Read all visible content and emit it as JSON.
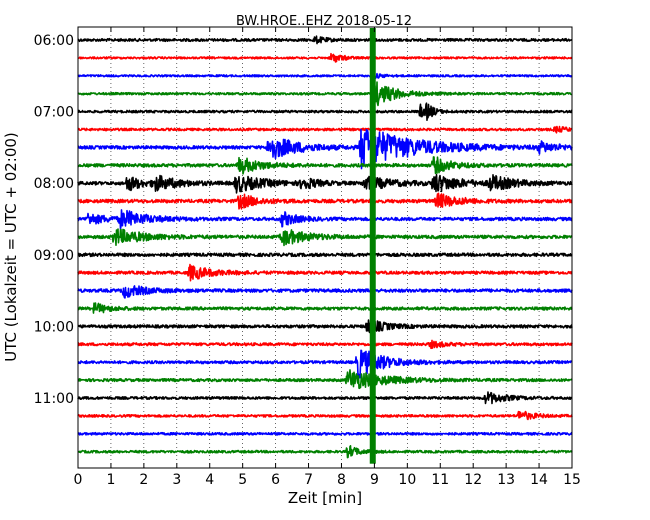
{
  "chart_data": {
    "type": "line",
    "title": "BW.HROE..EHZ 2018-05-12",
    "xlabel": "Zeit  [min]",
    "ylabel": "UTC (Lokalzeit = UTC + 02:00)",
    "xlim": [
      0,
      15
    ],
    "xticks": [
      "0",
      "1",
      "2",
      "3",
      "4",
      "5",
      "6",
      "7",
      "8",
      "9",
      "10",
      "11",
      "12",
      "13",
      "14",
      "15"
    ],
    "y_tick_labels": [
      "06:00",
      "07:00",
      "08:00",
      "09:00",
      "10:00",
      "11:00"
    ],
    "y_tick_trace_index": [
      0,
      4,
      8,
      12,
      16,
      20
    ],
    "trace_interval_minutes": 15,
    "trace_count": 24,
    "first_trace_time": "06:00",
    "grid": "vertical dotted at each minute",
    "colors": [
      "#000000",
      "#ff0000",
      "#0000ff",
      "#008000"
    ],
    "trace_noise": [
      0.25,
      0.18,
      0.18,
      0.2,
      0.22,
      0.22,
      0.3,
      0.3,
      0.3,
      0.32,
      0.3,
      0.3,
      0.3,
      0.28,
      0.3,
      0.28,
      0.28,
      0.26,
      0.26,
      0.26,
      0.24,
      0.22,
      0.22,
      0.22
    ],
    "events": [
      {
        "trace": 0,
        "minute": 7.2,
        "amp": 0.6,
        "dur": 0.3
      },
      {
        "trace": 1,
        "minute": 7.7,
        "amp": 1.0,
        "dur": 0.3
      },
      {
        "trace": 2,
        "minute": 9.0,
        "amp": 0.4,
        "dur": 0.3
      },
      {
        "trace": 3,
        "minute": 9.0,
        "amp": 2.5,
        "dur": 0.6
      },
      {
        "trace": 4,
        "minute": 10.4,
        "amp": 1.2,
        "dur": 0.2
      },
      {
        "trace": 4,
        "minute": 10.6,
        "amp": 1.2,
        "dur": 0.2
      },
      {
        "trace": 5,
        "minute": 14.5,
        "amp": 0.5,
        "dur": 0.4
      },
      {
        "trace": 6,
        "minute": 5.8,
        "amp": 2.4,
        "dur": 0.8
      },
      {
        "trace": 6,
        "minute": 8.6,
        "amp": 4.0,
        "dur": 1.5
      },
      {
        "trace": 6,
        "minute": 14.0,
        "amp": 1.0,
        "dur": 0.5
      },
      {
        "trace": 7,
        "minute": 4.9,
        "amp": 1.6,
        "dur": 0.6
      },
      {
        "trace": 7,
        "minute": 10.8,
        "amp": 1.6,
        "dur": 0.5
      },
      {
        "trace": 8,
        "minute": 1.5,
        "amp": 1.5,
        "dur": 0.4
      },
      {
        "trace": 8,
        "minute": 2.3,
        "amp": 1.4,
        "dur": 0.7
      },
      {
        "trace": 8,
        "minute": 4.8,
        "amp": 1.6,
        "dur": 0.8
      },
      {
        "trace": 8,
        "minute": 6.8,
        "amp": 1.2,
        "dur": 0.4
      },
      {
        "trace": 8,
        "minute": 8.7,
        "amp": 1.3,
        "dur": 0.8
      },
      {
        "trace": 8,
        "minute": 10.8,
        "amp": 1.8,
        "dur": 0.7
      },
      {
        "trace": 8,
        "minute": 12.5,
        "amp": 1.4,
        "dur": 0.7
      },
      {
        "trace": 9,
        "minute": 4.9,
        "amp": 1.4,
        "dur": 0.5
      },
      {
        "trace": 9,
        "minute": 10.9,
        "amp": 1.4,
        "dur": 0.6
      },
      {
        "trace": 10,
        "minute": 1.3,
        "amp": 1.6,
        "dur": 0.7
      },
      {
        "trace": 10,
        "minute": 0.3,
        "amp": 1.0,
        "dur": 0.6
      },
      {
        "trace": 10,
        "minute": 6.2,
        "amp": 1.4,
        "dur": 0.4
      },
      {
        "trace": 11,
        "minute": 1.1,
        "amp": 1.6,
        "dur": 0.8
      },
      {
        "trace": 11,
        "minute": 6.2,
        "amp": 1.6,
        "dur": 0.7
      },
      {
        "trace": 13,
        "minute": 3.4,
        "amp": 1.4,
        "dur": 0.6
      },
      {
        "trace": 14,
        "minute": 1.4,
        "amp": 1.2,
        "dur": 0.6
      },
      {
        "trace": 15,
        "minute": 0.5,
        "amp": 1.0,
        "dur": 0.4
      },
      {
        "trace": 16,
        "minute": 8.8,
        "amp": 1.4,
        "dur": 0.5
      },
      {
        "trace": 17,
        "minute": 10.7,
        "amp": 0.6,
        "dur": 0.4
      },
      {
        "trace": 18,
        "minute": 8.5,
        "amp": 3.0,
        "dur": 0.7
      },
      {
        "trace": 19,
        "minute": 8.2,
        "amp": 2.0,
        "dur": 1.0
      },
      {
        "trace": 20,
        "minute": 12.4,
        "amp": 1.2,
        "dur": 0.5
      },
      {
        "trace": 21,
        "minute": 13.4,
        "amp": 1.0,
        "dur": 0.4
      },
      {
        "trace": 23,
        "minute": 8.2,
        "amp": 1.2,
        "dur": 0.3
      }
    ],
    "spikes": [
      {
        "trace": 3,
        "minute": 8.95,
        "from_trace": 0,
        "to_trace": 23
      }
    ]
  }
}
